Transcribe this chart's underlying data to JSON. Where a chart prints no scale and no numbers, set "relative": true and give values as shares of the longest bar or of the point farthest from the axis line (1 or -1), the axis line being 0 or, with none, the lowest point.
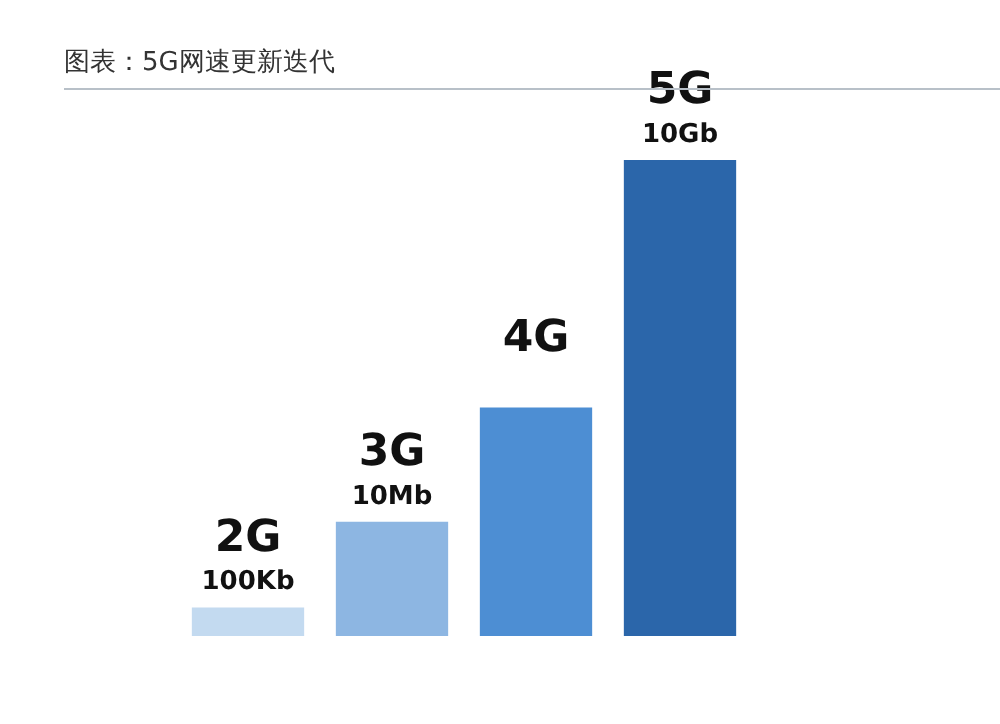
{
  "chart_data": {
    "type": "bar",
    "title": "图表：5G网速更新迭代",
    "relative": true,
    "categories": [
      "2G",
      "3G",
      "4G",
      "5G"
    ],
    "values": [
      0.06,
      0.24,
      0.48,
      1
    ],
    "colors": [
      "#c3daf0",
      "#8db6e2",
      "#4d8ed3",
      "#2b66aa"
    ],
    "annotations": [
      {
        "text": "100Kb",
        "x": "2G",
        "y": 0.06
      },
      {
        "text": "10Mb",
        "x": "3G",
        "y": 0.24
      },
      {
        "text": "10Gb",
        "x": "5G",
        "y": 1
      }
    ],
    "legend": false
  }
}
